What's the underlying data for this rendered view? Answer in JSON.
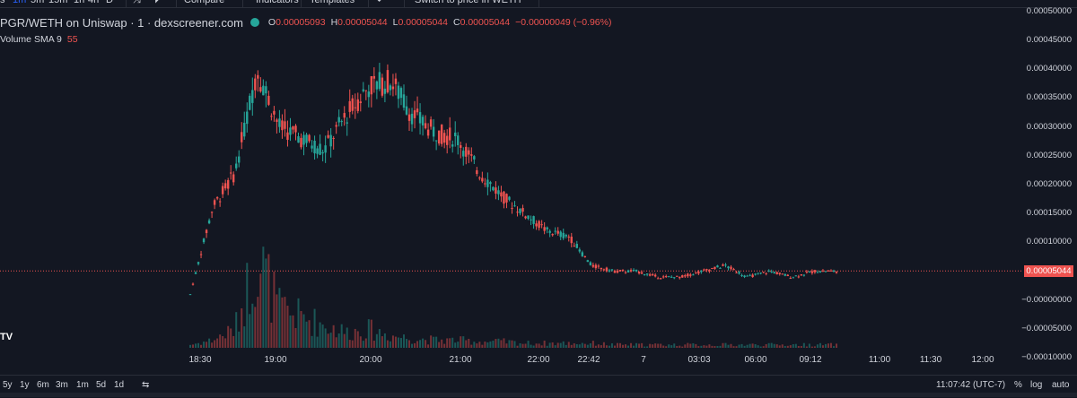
{
  "topbar": {
    "items": [
      "s",
      "1m",
      "5m",
      "15m",
      "1h",
      "4h",
      "D",
      "⤨",
      "⏵",
      "Compare",
      "Indicators",
      "Templates",
      "↶",
      "Switch to price in WETH"
    ],
    "active_interval": "1m"
  },
  "legend": {
    "symbol": "PGR/WETH on Uniswap · 1 · dexscreener.com",
    "o_label": "O",
    "o": "0.00005093",
    "h_label": "H",
    "h": "0.00005044",
    "l_label": "L",
    "l": "0.00005044",
    "c_label": "C",
    "c": "0.00005044",
    "change": "−0.00000049 (−0.96%)",
    "status_color": "#26a69a"
  },
  "volume": {
    "label": "Volume SMA 9",
    "value": "55"
  },
  "y_axis": {
    "ticks": [
      "0.00050000",
      "0.00045000",
      "0.00040000",
      "0.00035000",
      "0.00030000",
      "0.00025000",
      "0.00020000",
      "0.00015000",
      "0.00010000",
      "0.00005000",
      "−0.00000000",
      "−0.00005000",
      "−0.00010000"
    ],
    "current_price": "0.00005044"
  },
  "x_axis": {
    "ticks": [
      "18:30",
      "19:00",
      "20:00",
      "21:00",
      "22:00",
      "22:42",
      "7",
      "03:03",
      "06:00",
      "09:12",
      "11:00",
      "11:30",
      "12:00"
    ]
  },
  "bottombar": {
    "ranges": [
      "5y",
      "1y",
      "6m",
      "3m",
      "1m",
      "5d",
      "1d"
    ],
    "time": "11:07:42 (UTC-7)",
    "pct": "%",
    "log": "log",
    "auto": "auto"
  },
  "logo": "TV",
  "colors": {
    "up": "#26a69a",
    "down": "#ef5350",
    "bg": "#131722",
    "grid": "#1e222d"
  },
  "chart_data": {
    "type": "line",
    "title": "PGR/WETH on Uniswap",
    "x": [
      "18:05",
      "18:15",
      "18:25",
      "18:30",
      "18:40",
      "18:50",
      "19:00",
      "19:15",
      "19:30",
      "19:40",
      "19:50",
      "20:00",
      "20:10",
      "20:20",
      "20:40",
      "21:00",
      "21:20",
      "21:40",
      "22:00",
      "22:20",
      "22:42",
      "23:30",
      "7",
      "02:00",
      "03:03",
      "04:30",
      "06:00",
      "07:00",
      "08:00",
      "09:12"
    ],
    "series": [
      {
        "values": [
          1e-05,
          0.00016,
          0.00022,
          0.0004,
          0.0003,
          0.00028,
          0.00026,
          0.00032,
          0.00037,
          0.00038,
          0.00032,
          0.00029,
          0.00028,
          0.00022,
          0.00018,
          0.00015,
          0.00012,
          0.00011,
          6e-05,
          5e-05,
          5e-05,
          4e-05,
          4e-05,
          5e-05,
          6e-05,
          4e-05,
          5e-05,
          4e-05,
          5e-05,
          5e-05
        ]
      },
      {
        "values": [
          2,
          5,
          12,
          60,
          25,
          20,
          15,
          10,
          12,
          8,
          6,
          5,
          5,
          4,
          4,
          3,
          3,
          3,
          3,
          2,
          2,
          2,
          2,
          2,
          2,
          2,
          2,
          2,
          2,
          2
        ]
      }
    ],
    "ylim": [
      -0.00012,
      0.00052
    ]
  }
}
